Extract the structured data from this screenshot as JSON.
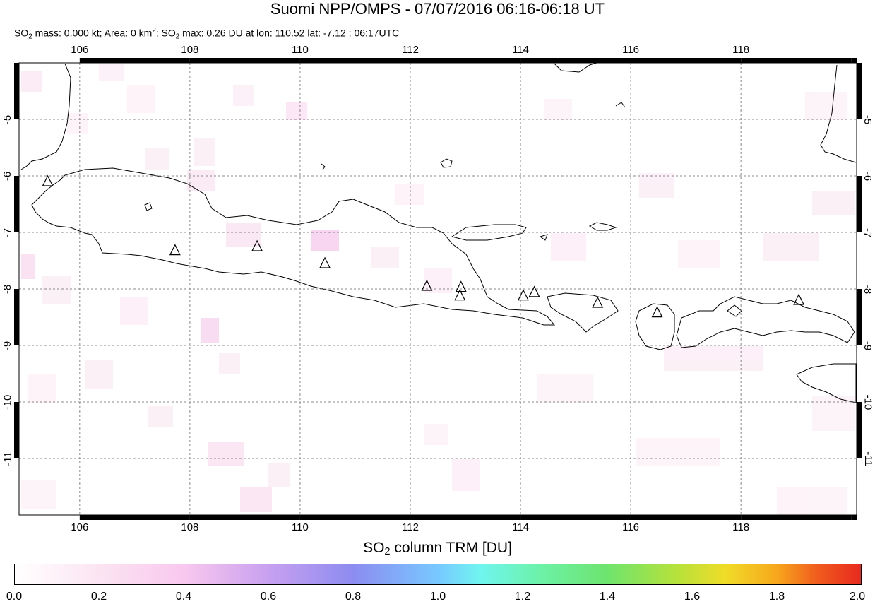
{
  "title": "Suomi NPP/OMPS - 07/07/2016 06:16-06:18 UT",
  "subtitle": {
    "p1": "SO",
    "sub1": "2",
    "p2": " mass: 0.000 kt; Area: 0 km",
    "sup1": "2",
    "p3": "; SO",
    "sub2": "2",
    "p4": " max: 0.26 DU at lon: 110.52 lat: -7.12 ; 06:17UTC"
  },
  "map": {
    "lon_range": [
      104.9,
      120.1
    ],
    "lat_range": [
      -12.0,
      -4.0
    ],
    "lon_ticks": [
      "106",
      "108",
      "110",
      "112",
      "114",
      "116",
      "118"
    ],
    "lat_ticks": [
      "-5",
      "-6",
      "-7",
      "-8",
      "-9",
      "-10",
      "-11"
    ],
    "volcanoes": [
      {
        "lon": 105.42,
        "lat": -6.1
      },
      {
        "lon": 107.73,
        "lat": -7.32
      },
      {
        "lon": 109.22,
        "lat": -7.25
      },
      {
        "lon": 110.45,
        "lat": -7.55
      },
      {
        "lon": 112.3,
        "lat": -7.95
      },
      {
        "lon": 112.92,
        "lat": -7.97
      },
      {
        "lon": 112.9,
        "lat": -8.12
      },
      {
        "lon": 114.05,
        "lat": -8.12
      },
      {
        "lon": 114.25,
        "lat": -8.06
      },
      {
        "lon": 115.4,
        "lat": -8.25
      },
      {
        "lon": 116.48,
        "lat": -8.42
      },
      {
        "lon": 119.05,
        "lat": -8.2
      }
    ]
  },
  "colorbar": {
    "title_p1": "SO",
    "title_sub": "2",
    "title_p2": " column TRM [DU]",
    "ticks": [
      "0.0",
      "0.2",
      "0.4",
      "0.6",
      "0.8",
      "1.0",
      "1.2",
      "1.4",
      "1.6",
      "1.8",
      "2.0"
    ]
  }
}
